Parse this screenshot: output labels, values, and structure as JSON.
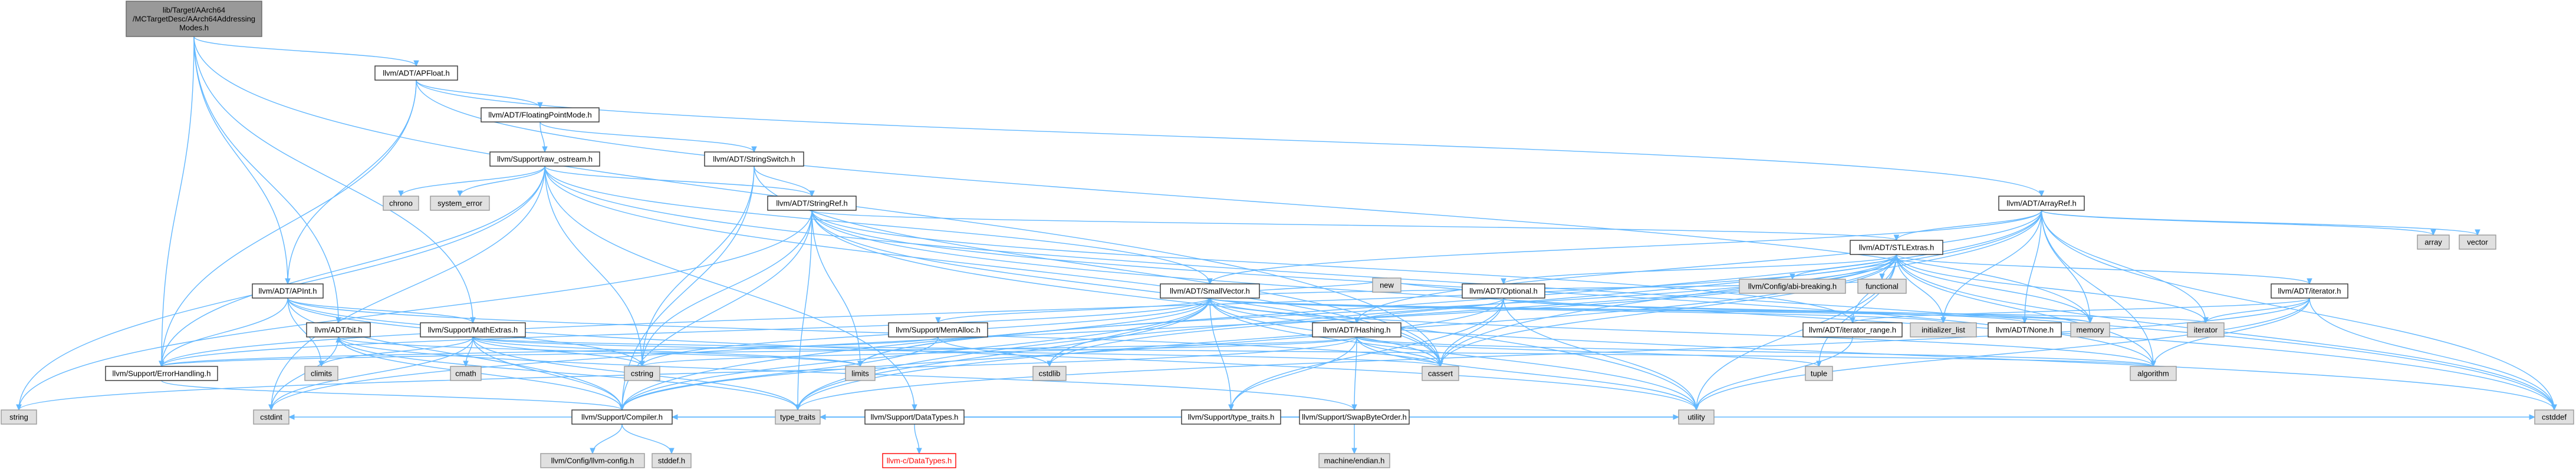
{
  "colors": {
    "edge": "#63b8ff",
    "root_fill": "#999999",
    "system_fill": "#e0e0e0",
    "missing_border": "#ff0000",
    "node_border": "#333333"
  },
  "nodes": [
    {
      "id": "root",
      "lines": [
        "lib/Target/AArch64",
        "/MCTargetDesc/AArch64Addressing",
        "Modes.h"
      ],
      "kind": "root"
    },
    {
      "id": "apfloat",
      "lines": [
        "llvm/ADT/APFloat.h"
      ],
      "kind": "plain"
    },
    {
      "id": "fpmode",
      "lines": [
        "llvm/ADT/FloatingPointMode.h"
      ],
      "kind": "plain"
    },
    {
      "id": "rawos",
      "lines": [
        "llvm/Support/raw_ostream.h"
      ],
      "kind": "plain"
    },
    {
      "id": "strswitch",
      "lines": [
        "llvm/ADT/StringSwitch.h"
      ],
      "kind": "plain"
    },
    {
      "id": "arrayref",
      "lines": [
        "llvm/ADT/ArrayRef.h"
      ],
      "kind": "plain"
    },
    {
      "id": "chrono",
      "lines": [
        "chrono"
      ],
      "kind": "sys"
    },
    {
      "id": "syserr",
      "lines": [
        "system_error"
      ],
      "kind": "sys"
    },
    {
      "id": "stringref",
      "lines": [
        "llvm/ADT/StringRef.h"
      ],
      "kind": "plain"
    },
    {
      "id": "array",
      "lines": [
        "array"
      ],
      "kind": "sys"
    },
    {
      "id": "vector",
      "lines": [
        "vector"
      ],
      "kind": "sys"
    },
    {
      "id": "stlextras",
      "lines": [
        "llvm/ADT/STLExtras.h"
      ],
      "kind": "plain"
    },
    {
      "id": "abibreak",
      "lines": [
        "llvm/Config/abi-breaking.h"
      ],
      "kind": "sys"
    },
    {
      "id": "functional",
      "lines": [
        "functional"
      ],
      "kind": "sys"
    },
    {
      "id": "apint",
      "lines": [
        "llvm/ADT/APInt.h"
      ],
      "kind": "plain"
    },
    {
      "id": "smallvector",
      "lines": [
        "llvm/ADT/SmallVector.h"
      ],
      "kind": "plain"
    },
    {
      "id": "optional",
      "lines": [
        "llvm/ADT/Optional.h"
      ],
      "kind": "plain"
    },
    {
      "id": "iteratorh",
      "lines": [
        "llvm/ADT/iterator.h"
      ],
      "kind": "plain"
    },
    {
      "id": "bith",
      "lines": [
        "llvm/ADT/bit.h"
      ],
      "kind": "plain"
    },
    {
      "id": "mathextras",
      "lines": [
        "llvm/Support/MathExtras.h"
      ],
      "kind": "plain"
    },
    {
      "id": "memalloc",
      "lines": [
        "llvm/Support/MemAlloc.h"
      ],
      "kind": "plain"
    },
    {
      "id": "new",
      "lines": [
        "new"
      ],
      "kind": "sys"
    },
    {
      "id": "hashing",
      "lines": [
        "llvm/ADT/Hashing.h"
      ],
      "kind": "plain"
    },
    {
      "id": "iterrange",
      "lines": [
        "llvm/ADT/iterator_range.h"
      ],
      "kind": "plain"
    },
    {
      "id": "initlist",
      "lines": [
        "initializer_list"
      ],
      "kind": "sys"
    },
    {
      "id": "none",
      "lines": [
        "llvm/ADT/None.h"
      ],
      "kind": "plain"
    },
    {
      "id": "memory",
      "lines": [
        "memory"
      ],
      "kind": "sys"
    },
    {
      "id": "iterator",
      "lines": [
        "iterator"
      ],
      "kind": "sys"
    },
    {
      "id": "climits",
      "lines": [
        "climits"
      ],
      "kind": "sys"
    },
    {
      "id": "cmath",
      "lines": [
        "cmath"
      ],
      "kind": "sys"
    },
    {
      "id": "cstring",
      "lines": [
        "cstring"
      ],
      "kind": "sys"
    },
    {
      "id": "limits",
      "lines": [
        "limits"
      ],
      "kind": "sys"
    },
    {
      "id": "cstdlib",
      "lines": [
        "cstdlib"
      ],
      "kind": "sys"
    },
    {
      "id": "cassert",
      "lines": [
        "cassert"
      ],
      "kind": "sys"
    },
    {
      "id": "tuple",
      "lines": [
        "tuple"
      ],
      "kind": "sys"
    },
    {
      "id": "algorithm",
      "lines": [
        "algorithm"
      ],
      "kind": "sys"
    },
    {
      "id": "errhandling",
      "lines": [
        "llvm/Support/ErrorHandling.h"
      ],
      "kind": "plain"
    },
    {
      "id": "datatypes",
      "lines": [
        "llvm/Support/DataTypes.h"
      ],
      "kind": "plain"
    },
    {
      "id": "typetraitsh",
      "lines": [
        "llvm/Support/type_traits.h"
      ],
      "kind": "plain"
    },
    {
      "id": "swapbyte",
      "lines": [
        "llvm/Support/SwapByteOrder.h"
      ],
      "kind": "plain"
    },
    {
      "id": "string",
      "lines": [
        "string"
      ],
      "kind": "sys"
    },
    {
      "id": "cstdint",
      "lines": [
        "cstdint"
      ],
      "kind": "sys"
    },
    {
      "id": "compiler",
      "lines": [
        "llvm/Support/Compiler.h"
      ],
      "kind": "plain"
    },
    {
      "id": "typetraits",
      "lines": [
        "type_traits"
      ],
      "kind": "sys"
    },
    {
      "id": "llvmcdt",
      "lines": [
        "llvm-c/DataTypes.h"
      ],
      "kind": "missing"
    },
    {
      "id": "machendian",
      "lines": [
        "machine/endian.h"
      ],
      "kind": "sys"
    },
    {
      "id": "utility",
      "lines": [
        "utility"
      ],
      "kind": "sys"
    },
    {
      "id": "cstddef",
      "lines": [
        "cstddef"
      ],
      "kind": "sys"
    },
    {
      "id": "llvmconfig",
      "lines": [
        "llvm/Config/llvm-config.h"
      ],
      "kind": "sys"
    },
    {
      "id": "stddef",
      "lines": [
        "stddef.h"
      ],
      "kind": "sys"
    }
  ],
  "edges": [
    [
      "root",
      "apfloat"
    ],
    [
      "root",
      "apint"
    ],
    [
      "root",
      "bith"
    ],
    [
      "root",
      "errhandling"
    ],
    [
      "root",
      "mathextras"
    ],
    [
      "root",
      "cassert"
    ],
    [
      "apfloat",
      "apint"
    ],
    [
      "apfloat",
      "arrayref"
    ],
    [
      "apfloat",
      "fpmode"
    ],
    [
      "apfloat",
      "errhandling"
    ],
    [
      "apfloat",
      "memory"
    ],
    [
      "fpmode",
      "strswitch"
    ],
    [
      "fpmode",
      "rawos"
    ],
    [
      "rawos",
      "stringref"
    ],
    [
      "rawos",
      "chrono"
    ],
    [
      "rawos",
      "syserr"
    ],
    [
      "rawos",
      "cassert"
    ],
    [
      "rawos",
      "cstddef"
    ],
    [
      "rawos",
      "cstdint"
    ],
    [
      "rawos",
      "cstring"
    ],
    [
      "rawos",
      "string"
    ],
    [
      "rawos",
      "type_traits_placeholder"
    ],
    [
      "rawos",
      "smallvector"
    ],
    [
      "rawos",
      "datatypes"
    ],
    [
      "rawos",
      "errhandling"
    ],
    [
      "strswitch",
      "stringref"
    ],
    [
      "strswitch",
      "compiler"
    ],
    [
      "strswitch",
      "cassert"
    ],
    [
      "strswitch",
      "cstring"
    ],
    [
      "stringref",
      "stlextras"
    ],
    [
      "stringref",
      "iterrange"
    ],
    [
      "stringref",
      "compiler"
    ],
    [
      "stringref",
      "algorithm"
    ],
    [
      "stringref",
      "cassert"
    ],
    [
      "stringref",
      "cstddef"
    ],
    [
      "stringref",
      "cstring"
    ],
    [
      "stringref",
      "limits"
    ],
    [
      "stringref",
      "string"
    ],
    [
      "stringref",
      "typetraits"
    ],
    [
      "stringref",
      "utility"
    ],
    [
      "arrayref",
      "hashing"
    ],
    [
      "arrayref",
      "none"
    ],
    [
      "arrayref",
      "smallvector"
    ],
    [
      "arrayref",
      "stlextras"
    ],
    [
      "arrayref",
      "compiler"
    ],
    [
      "arrayref",
      "algorithm"
    ],
    [
      "arrayref",
      "array"
    ],
    [
      "arrayref",
      "cassert"
    ],
    [
      "arrayref",
      "cstddef"
    ],
    [
      "arrayref",
      "initlist"
    ],
    [
      "arrayref",
      "iterator"
    ],
    [
      "arrayref",
      "memory"
    ],
    [
      "arrayref",
      "typetraits"
    ],
    [
      "arrayref",
      "vector"
    ],
    [
      "stlextras",
      "optional"
    ],
    [
      "stlextras",
      "abibreak"
    ],
    [
      "stlextras",
      "functional"
    ],
    [
      "stlextras",
      "iteratorh"
    ],
    [
      "stlextras",
      "iterrange"
    ],
    [
      "stlextras",
      "errhandling"
    ],
    [
      "stlextras",
      "algorithm"
    ],
    [
      "stlextras",
      "cassert"
    ],
    [
      "stlextras",
      "cstddef"
    ],
    [
      "stlextras",
      "cstdint"
    ],
    [
      "stlextras",
      "cstdlib"
    ],
    [
      "stlextras",
      "initlist"
    ],
    [
      "stlextras",
      "iterator"
    ],
    [
      "stlextras",
      "limits"
    ],
    [
      "stlextras",
      "memory"
    ],
    [
      "stlextras",
      "tuple"
    ],
    [
      "stlextras",
      "typetraits"
    ],
    [
      "stlextras",
      "utility"
    ],
    [
      "apint",
      "mathextras"
    ],
    [
      "apint",
      "compiler"
    ],
    [
      "apint",
      "cassert"
    ],
    [
      "apint",
      "climits"
    ],
    [
      "apint",
      "cstring"
    ],
    [
      "apint",
      "utility"
    ],
    [
      "apint",
      "errhandling"
    ],
    [
      "smallvector",
      "compiler"
    ],
    [
      "smallvector",
      "memalloc"
    ],
    [
      "smallvector",
      "type_traits_placeholder"
    ],
    [
      "smallvector",
      "typetraitsh"
    ],
    [
      "smallvector",
      "algorithm"
    ],
    [
      "smallvector",
      "cassert"
    ],
    [
      "smallvector",
      "cstddef"
    ],
    [
      "smallvector",
      "cstdlib"
    ],
    [
      "smallvector",
      "cstring"
    ],
    [
      "smallvector",
      "functional"
    ],
    [
      "smallvector",
      "initlist"
    ],
    [
      "smallvector",
      "iterator"
    ],
    [
      "smallvector",
      "limits"
    ],
    [
      "smallvector",
      "memory"
    ],
    [
      "smallvector",
      "new"
    ],
    [
      "smallvector",
      "utility"
    ],
    [
      "smallvector",
      "typetraits"
    ],
    [
      "smallvector",
      "errhandling"
    ],
    [
      "optional",
      "hashing"
    ],
    [
      "optional",
      "none"
    ],
    [
      "optional",
      "compiler"
    ],
    [
      "optional",
      "typetraitsh"
    ],
    [
      "optional",
      "cassert"
    ],
    [
      "optional",
      "memory"
    ],
    [
      "optional",
      "new"
    ],
    [
      "optional",
      "utility"
    ],
    [
      "iteratorh",
      "iterrange"
    ],
    [
      "iteratorh",
      "algorithm"
    ],
    [
      "iteratorh",
      "cstddef"
    ],
    [
      "iteratorh",
      "iterator"
    ],
    [
      "iteratorh",
      "typetraits"
    ],
    [
      "iteratorh",
      "utility"
    ],
    [
      "bith",
      "compiler"
    ],
    [
      "bith",
      "cstdint"
    ],
    [
      "bith",
      "limits"
    ],
    [
      "bith",
      "typetraits"
    ],
    [
      "mathextras",
      "compiler"
    ],
    [
      "mathextras",
      "algorithm"
    ],
    [
      "mathextras",
      "cassert"
    ],
    [
      "mathextras",
      "climits"
    ],
    [
      "mathextras",
      "cmath"
    ],
    [
      "mathextras",
      "cstdint"
    ],
    [
      "mathextras",
      "cstring"
    ],
    [
      "mathextras",
      "limits"
    ],
    [
      "mathextras",
      "typetraits"
    ],
    [
      "memalloc",
      "compiler"
    ],
    [
      "memalloc",
      "errhandling"
    ],
    [
      "memalloc",
      "cstdlib"
    ],
    [
      "hashing",
      "errhandling"
    ],
    [
      "hashing",
      "swapbyte"
    ],
    [
      "hashing",
      "typetraitsh"
    ],
    [
      "hashing",
      "algorithm"
    ],
    [
      "hashing",
      "cassert"
    ],
    [
      "hashing",
      "cstring"
    ],
    [
      "hashing",
      "string"
    ],
    [
      "hashing",
      "tuple"
    ],
    [
      "hashing",
      "utility"
    ],
    [
      "iterrange",
      "utility"
    ],
    [
      "errhandling",
      "compiler"
    ],
    [
      "datatypes",
      "llvmcdt"
    ],
    [
      "typetraitsh",
      "compiler"
    ],
    [
      "typetraitsh",
      "typetraits"
    ],
    [
      "typetraitsh",
      "utility"
    ],
    [
      "swapbyte",
      "bith"
    ],
    [
      "swapbyte",
      "cstddef"
    ],
    [
      "swapbyte",
      "cstdint"
    ],
    [
      "swapbyte",
      "typetraits"
    ],
    [
      "swapbyte",
      "machendian"
    ],
    [
      "compiler",
      "llvmconfig"
    ],
    [
      "compiler",
      "stddef"
    ]
  ]
}
